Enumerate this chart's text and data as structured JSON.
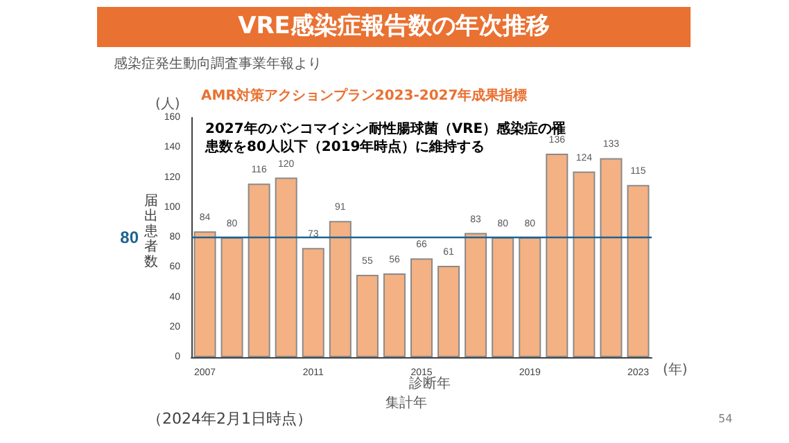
{
  "chart_data": {
    "type": "bar",
    "title": "VRE感染症報告数の年次推移",
    "subtitle": "感染症発生動向調査事業年報より",
    "xlabel": "集計年",
    "ylabel": "届出患者数",
    "categories": [
      "2007",
      null,
      null,
      null,
      "2011",
      null,
      null,
      null,
      "2015",
      null,
      null,
      null,
      "2019",
      null,
      null,
      null,
      "2023"
    ],
    "values": [
      84,
      80,
      116,
      120,
      73,
      91,
      55,
      56,
      66,
      61,
      83,
      80,
      80,
      136,
      124,
      133,
      115
    ],
    "color": "#f4b183",
    "data_labels": true,
    "ylim": [
      0,
      160
    ],
    "yticks": [
      0,
      20,
      40,
      60,
      80,
      100,
      120,
      140,
      160
    ],
    "grid": false,
    "ref_lines": [
      {
        "axis": "y",
        "value": 80,
        "label": "80",
        "color": "#1f6391"
      }
    ],
    "annotations": [
      "AMR対策アクションプラン2023-2027年成果指標",
      "2027年のバンコマイシン耐性腸球菌（VRE）感染症の罹患数を80人以下（2019年時点）に維持する",
      "(人)",
      "(年)",
      "診断年",
      "（2024年2月1日時点）",
      "54"
    ]
  }
}
